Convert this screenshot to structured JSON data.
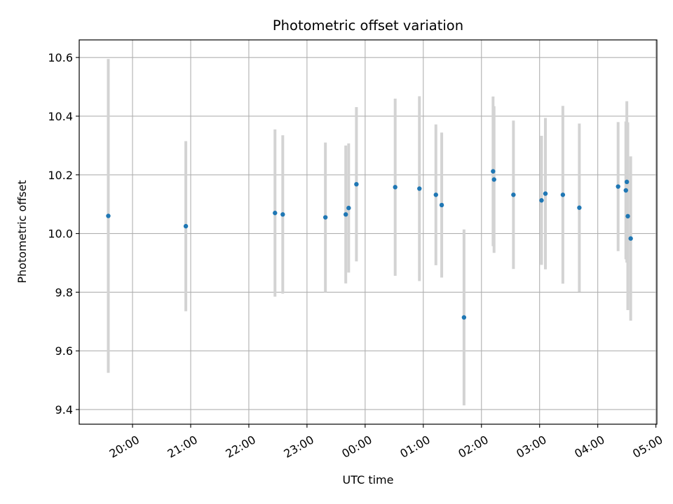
{
  "chart_data": {
    "type": "scatter",
    "title": "Photometric offset variation",
    "xlabel": "UTC time",
    "ylabel": "Photometric offset",
    "grid": true,
    "x_ticks": [
      "20:00",
      "21:00",
      "22:00",
      "23:00",
      "00:00",
      "01:00",
      "02:00",
      "03:00",
      "04:00",
      "05:00"
    ],
    "y_ticks": [
      "9.4",
      "9.6",
      "9.8",
      "10.0",
      "10.2",
      "10.4",
      "10.6"
    ],
    "xlim": [
      "19:05",
      "05:01"
    ],
    "ylim": [
      9.35,
      10.66
    ],
    "colors": {
      "marker": "#1f77b4",
      "errorbar": "#d3d3d3",
      "grid": "#b0b0b0"
    },
    "points": [
      {
        "time": "19:35",
        "y": 10.06,
        "yerr": 0.535
      },
      {
        "time": "20:55",
        "y": 10.025,
        "yerr": 0.29
      },
      {
        "time": "22:27",
        "y": 10.07,
        "yerr": 0.285
      },
      {
        "time": "22:35",
        "y": 10.065,
        "yerr": 0.27
      },
      {
        "time": "23:19",
        "y": 10.055,
        "yerr": 0.255
      },
      {
        "time": "23:40",
        "y": 10.065,
        "yerr": 0.235
      },
      {
        "time": "23:43",
        "y": 10.087,
        "yerr": 0.22
      },
      {
        "time": "23:51",
        "y": 10.168,
        "yerr": 0.263
      },
      {
        "time": "00:31",
        "y": 10.158,
        "yerr": 0.302
      },
      {
        "time": "00:56",
        "y": 10.153,
        "yerr": 0.315
      },
      {
        "time": "01:13",
        "y": 10.132,
        "yerr": 0.24
      },
      {
        "time": "01:19",
        "y": 10.097,
        "yerr": 0.247
      },
      {
        "time": "01:42",
        "y": 9.714,
        "yerr": 0.3
      },
      {
        "time": "02:12",
        "y": 10.212,
        "yerr": 0.255
      },
      {
        "time": "02:13",
        "y": 10.184,
        "yerr": 0.25
      },
      {
        "time": "02:33",
        "y": 10.132,
        "yerr": 0.253
      },
      {
        "time": "03:02",
        "y": 10.113,
        "yerr": 0.22
      },
      {
        "time": "03:06",
        "y": 10.136,
        "yerr": 0.258
      },
      {
        "time": "03:24",
        "y": 10.132,
        "yerr": 0.303
      },
      {
        "time": "03:41",
        "y": 10.088,
        "yerr": 0.287
      },
      {
        "time": "04:21",
        "y": 10.16,
        "yerr": 0.22
      },
      {
        "time": "04:29",
        "y": 10.147,
        "yerr": 0.235
      },
      {
        "time": "04:30",
        "y": 10.176,
        "yerr": 0.275
      },
      {
        "time": "04:31",
        "y": 10.059,
        "yerr": 0.32
      },
      {
        "time": "04:34",
        "y": 9.983,
        "yerr": 0.28
      }
    ]
  }
}
